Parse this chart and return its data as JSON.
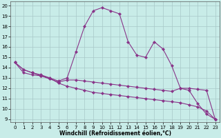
{
  "xlabel": "Windchill (Refroidissement éolien,°C)",
  "background_color": "#c8ece8",
  "grid_color": "#a8c8c8",
  "line_color": "#883388",
  "xlim_min": -0.5,
  "xlim_max": 23.5,
  "ylim_min": 8.7,
  "ylim_max": 20.4,
  "xticks": [
    0,
    1,
    2,
    3,
    4,
    5,
    6,
    7,
    8,
    9,
    10,
    11,
    12,
    13,
    14,
    15,
    16,
    17,
    18,
    19,
    20,
    21,
    22,
    23
  ],
  "yticks": [
    9,
    10,
    11,
    12,
    13,
    14,
    15,
    16,
    17,
    18,
    19,
    20
  ],
  "line1_x": [
    0,
    1,
    2,
    3,
    4,
    5,
    6,
    7,
    8,
    9,
    10,
    11,
    12,
    13,
    14,
    15,
    16,
    17,
    18,
    19,
    20,
    21,
    22,
    23
  ],
  "line1_y": [
    14.5,
    13.8,
    13.5,
    13.3,
    13.0,
    12.7,
    13.0,
    15.5,
    18.0,
    19.5,
    19.8,
    19.5,
    19.2,
    16.5,
    15.2,
    15.0,
    16.5,
    15.8,
    14.2,
    12.0,
    11.8,
    10.5,
    9.5,
    9.0
  ],
  "line2_x": [
    0,
    1,
    2,
    3,
    4,
    5,
    6,
    7,
    8,
    9,
    10,
    11,
    12,
    13,
    14,
    15,
    16,
    17,
    18,
    19,
    20,
    21,
    22,
    23
  ],
  "line2_y": [
    14.5,
    13.5,
    13.3,
    13.2,
    12.9,
    12.6,
    12.8,
    12.8,
    12.7,
    12.6,
    12.5,
    12.4,
    12.3,
    12.2,
    12.1,
    12.0,
    11.9,
    11.8,
    11.7,
    12.0,
    12.0,
    11.9,
    11.8,
    9.0
  ],
  "line3_x": [
    0,
    1,
    2,
    3,
    4,
    5,
    6,
    7,
    8,
    9,
    10,
    11,
    12,
    13,
    14,
    15,
    16,
    17,
    18,
    19,
    20,
    21,
    22,
    23
  ],
  "line3_y": [
    14.5,
    13.8,
    13.5,
    13.2,
    13.0,
    12.5,
    12.2,
    12.0,
    11.8,
    11.6,
    11.5,
    11.4,
    11.3,
    11.2,
    11.1,
    11.0,
    10.9,
    10.8,
    10.7,
    10.6,
    10.4,
    10.2,
    9.8,
    9.0
  ],
  "xlabel_fontsize": 5.5,
  "tick_fontsize": 5.0,
  "linewidth": 0.8,
  "markersize": 2.2
}
